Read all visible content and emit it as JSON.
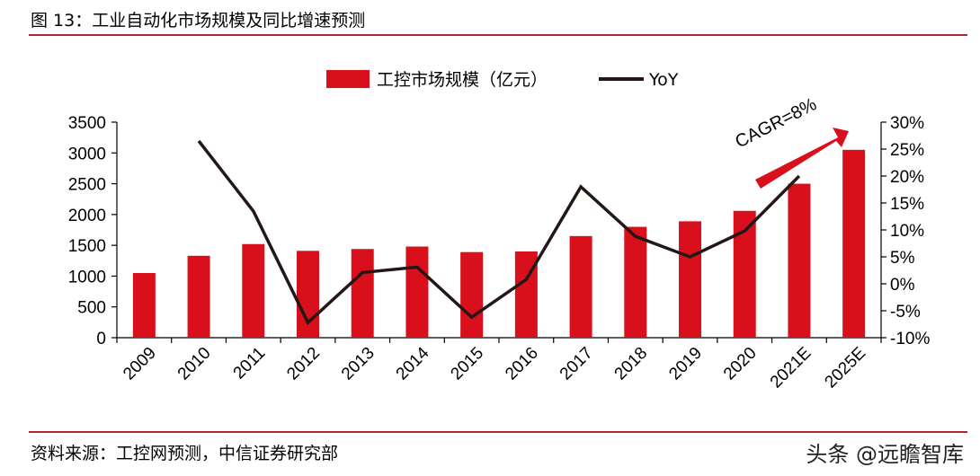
{
  "header": {
    "title": "图 13：工业自动化市场规模及同比增速预测"
  },
  "footer": {
    "source": "资料来源：工控网预测，中信证券研究部",
    "watermark": "头条 @远瞻智库"
  },
  "colors": {
    "bar": "#d9101c",
    "line": "#231815",
    "rule": "#b3262a",
    "arrow": "#d9101c"
  },
  "chart_data": {
    "type": "bar",
    "title": "",
    "categories": [
      "2009",
      "2010",
      "2011",
      "2012",
      "2013",
      "2014",
      "2015",
      "2016",
      "2017",
      "2018",
      "2019",
      "2020",
      "2021E",
      "2025E"
    ],
    "series": [
      {
        "name": "工控市场规模（亿元）",
        "type": "bar",
        "axis": "left",
        "values": [
          1050,
          1330,
          1520,
          1410,
          1440,
          1480,
          1390,
          1400,
          1650,
          1800,
          1890,
          2060,
          2500,
          3050
        ]
      },
      {
        "name": "YoY",
        "type": "line",
        "axis": "right",
        "values": [
          null,
          26.5,
          13.5,
          -7.2,
          2.1,
          3.1,
          -6.2,
          0.8,
          18.0,
          8.8,
          5.0,
          9.8,
          20.0,
          null
        ]
      }
    ],
    "left_axis": {
      "min": 0,
      "max": 3500,
      "ticks": [
        "0",
        "500",
        "1000",
        "1500",
        "2000",
        "2500",
        "3000",
        "3500"
      ]
    },
    "right_axis": {
      "min": -10,
      "max": 30,
      "ticks": [
        "-10%",
        "-5%",
        "0%",
        "5%",
        "10%",
        "15%",
        "20%",
        "25%",
        "30%"
      ]
    },
    "annotation": {
      "text": "CAGR=8%"
    },
    "legend": {
      "position": "top-center"
    },
    "grid": false
  }
}
